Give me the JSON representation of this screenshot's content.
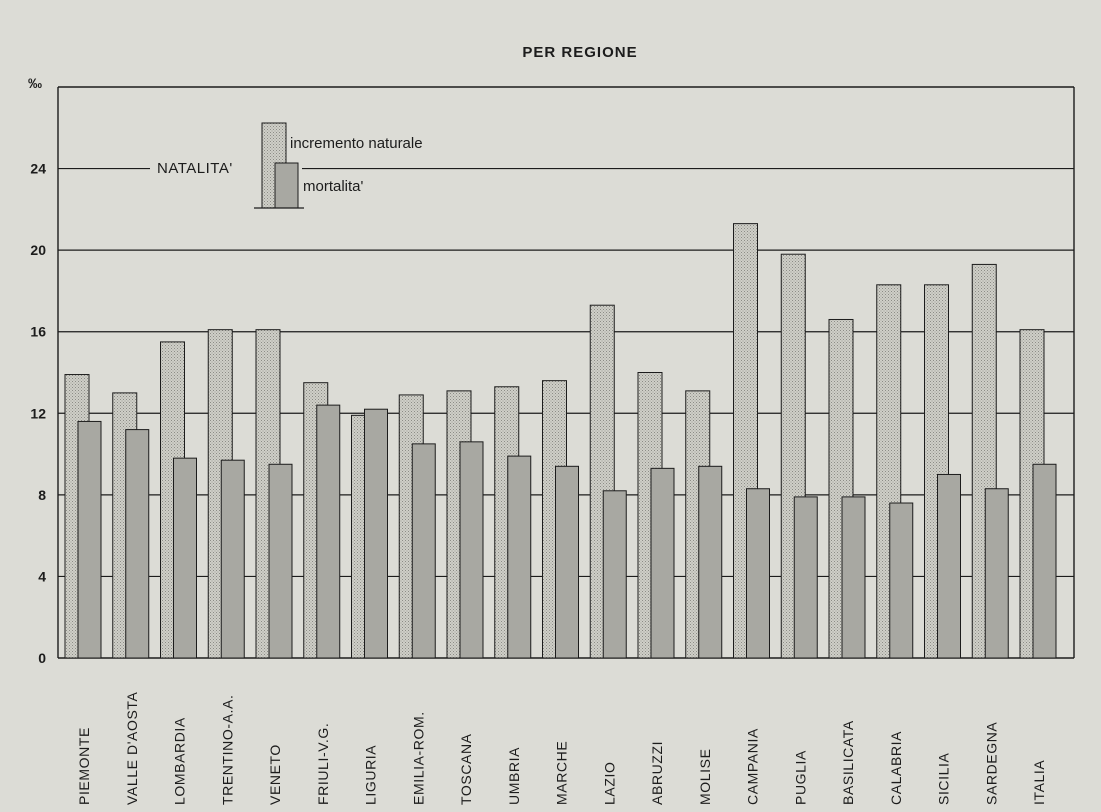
{
  "chart_data": {
    "type": "bar",
    "title": "PER REGIONE",
    "ylabel": "‰",
    "ylim": [
      0,
      28
    ],
    "yticks": [
      0,
      4,
      8,
      12,
      16,
      20,
      24
    ],
    "grid": true,
    "legend": {
      "placement": "top-left",
      "total_label": "NATALITA'",
      "entries": [
        "incremento naturale",
        "mortalita'"
      ]
    },
    "categories": [
      "PIEMONTE",
      "VALLE D'AOSTA",
      "LOMBARDIA",
      "TRENTINO-A.A.",
      "VENETO",
      "FRIULI-V.G.",
      "LIGURIA",
      "EMILIA-ROM.",
      "TOSCANA",
      "UMBRIA",
      "MARCHE",
      "LAZIO",
      "ABRUZZI",
      "MOLISE",
      "CAMPANIA",
      "PUGLIA",
      "BASILICATA",
      "CALABRIA",
      "SICILIA",
      "SARDEGNA",
      "ITALIA"
    ],
    "series": [
      {
        "name": "NATALITA'",
        "values": [
          13.9,
          13.0,
          15.5,
          16.1,
          16.1,
          13.5,
          11.9,
          12.9,
          13.1,
          13.3,
          13.6,
          17.3,
          14.0,
          13.1,
          21.3,
          19.8,
          16.6,
          18.3,
          18.3,
          19.3,
          16.1
        ]
      },
      {
        "name": "mortalita'",
        "values": [
          11.6,
          11.2,
          9.8,
          9.7,
          9.5,
          12.4,
          12.2,
          10.5,
          10.6,
          9.9,
          9.4,
          8.2,
          9.3,
          9.4,
          8.3,
          7.9,
          7.9,
          7.6,
          9.0,
          8.3,
          9.5
        ]
      }
    ],
    "colors": {
      "background": "#dcdcd6",
      "natalita_fill": "#cfcfc8",
      "mortalita_fill": "#a8a8a2",
      "stroke": "#1c1c1c",
      "grid": "#1c1c1c"
    }
  }
}
